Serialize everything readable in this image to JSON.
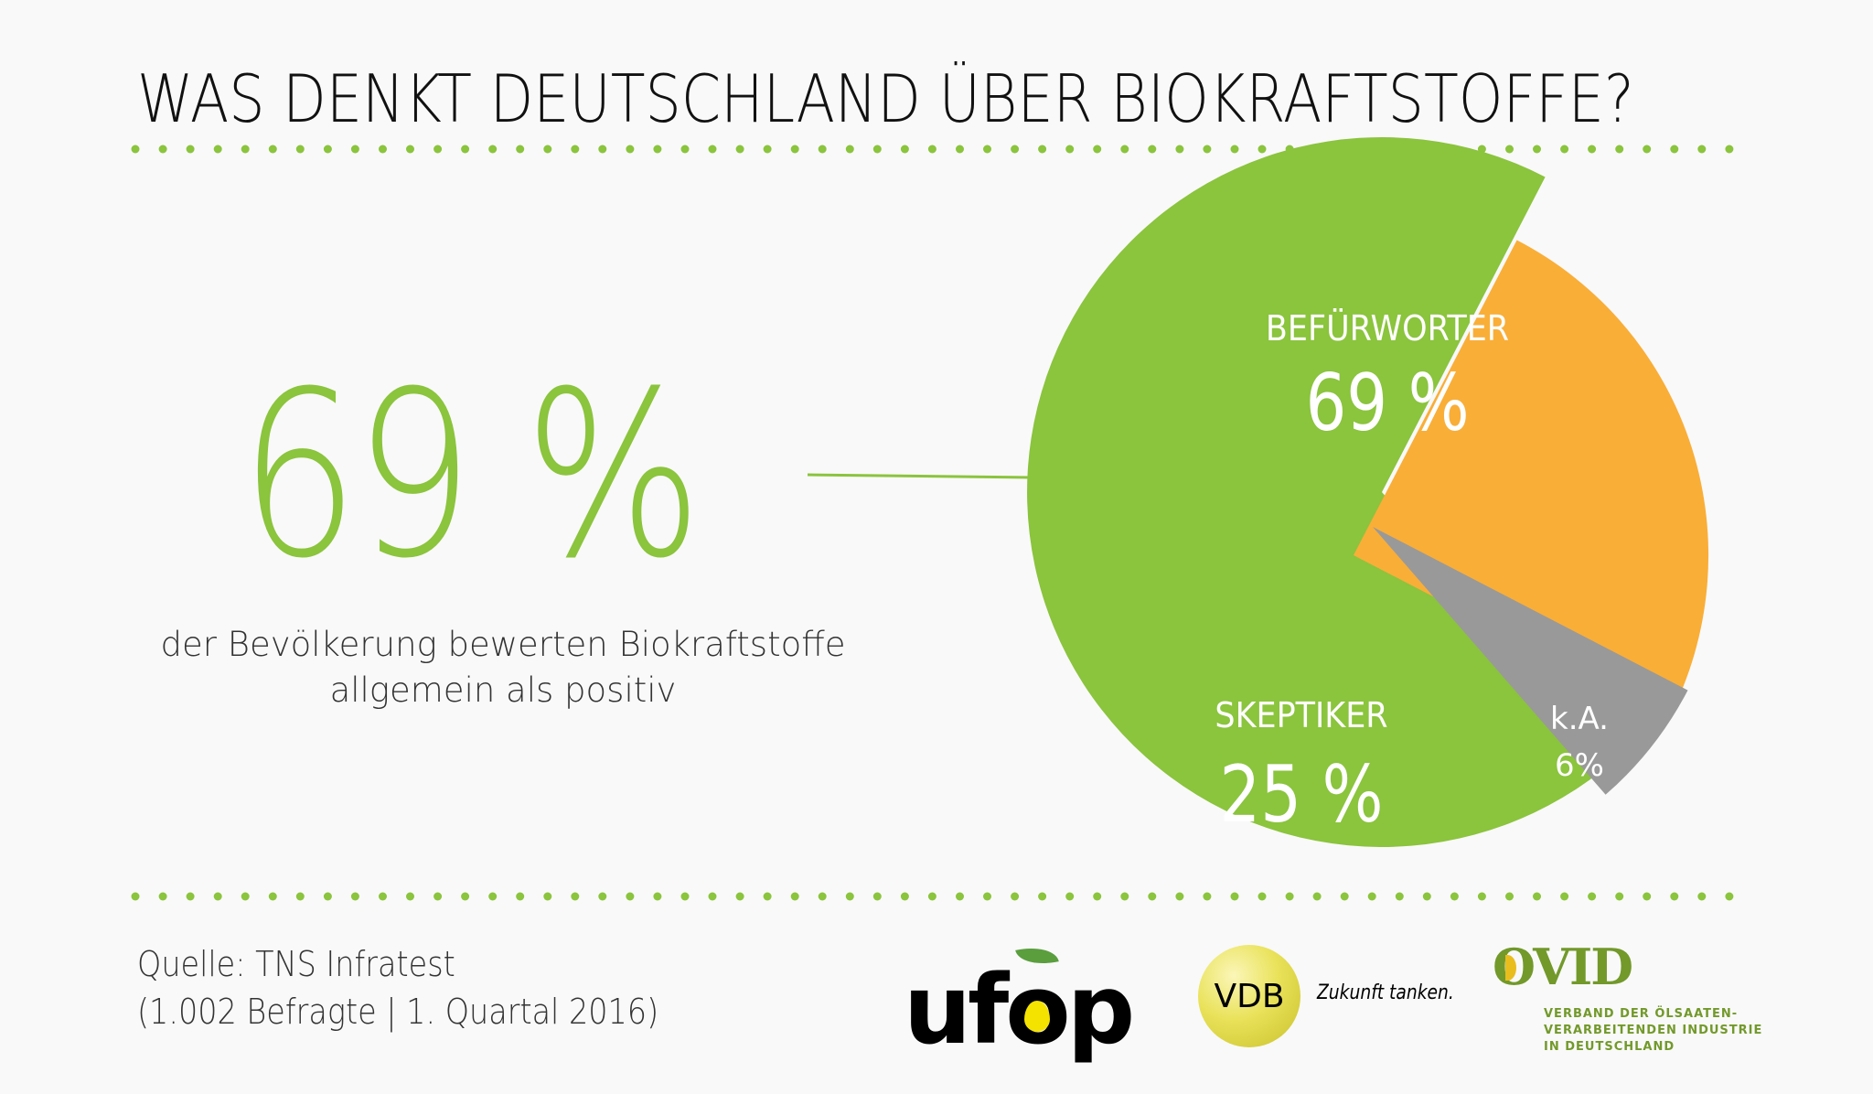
{
  "header": {
    "title": "WAS DENKT DEUTSCHLAND ÜBER BIOKRAFTSTOFFE?"
  },
  "highlight": {
    "big_number": "69 %",
    "caption_line1": "der Bevölkerung bewerten Biokraftstoffe",
    "caption_line2": "allgemein als positiv"
  },
  "colors": {
    "accent_green": "#8bc43d",
    "orange": "#f9ae38",
    "gray": "#999999",
    "background": "#f9f9f9"
  },
  "chart_data": {
    "type": "pie",
    "title": "WAS DENKT DEUTSCHLAND ÜBER BIOKRAFTSTOFFE?",
    "exploded": true,
    "slices": [
      {
        "label": "BEFÜRWORTER",
        "value": 69,
        "value_label": "69 %",
        "color": "#8bc43d"
      },
      {
        "label": "SKEPTIKER",
        "value": 25,
        "value_label": "25 %",
        "color": "#f9ae38"
      },
      {
        "label": "k.A.",
        "value": 6,
        "value_label": "6%",
        "color": "#999999"
      }
    ],
    "unit": "%"
  },
  "footer": {
    "source_line1": "Quelle: TNS Infratest",
    "source_line2": "(1.002 Befragte | 1. Quartal 2016)",
    "logos": {
      "ufop": "ufop",
      "vdb": "VDB",
      "vdb_slogan": "Zukunft tanken.",
      "ovid": "OVID",
      "ovid_sub_line1": "VERBAND DER ÖLSAATEN-",
      "ovid_sub_line2": "VERARBEITENDEN INDUSTRIE",
      "ovid_sub_line3": "IN DEUTSCHLAND"
    }
  }
}
